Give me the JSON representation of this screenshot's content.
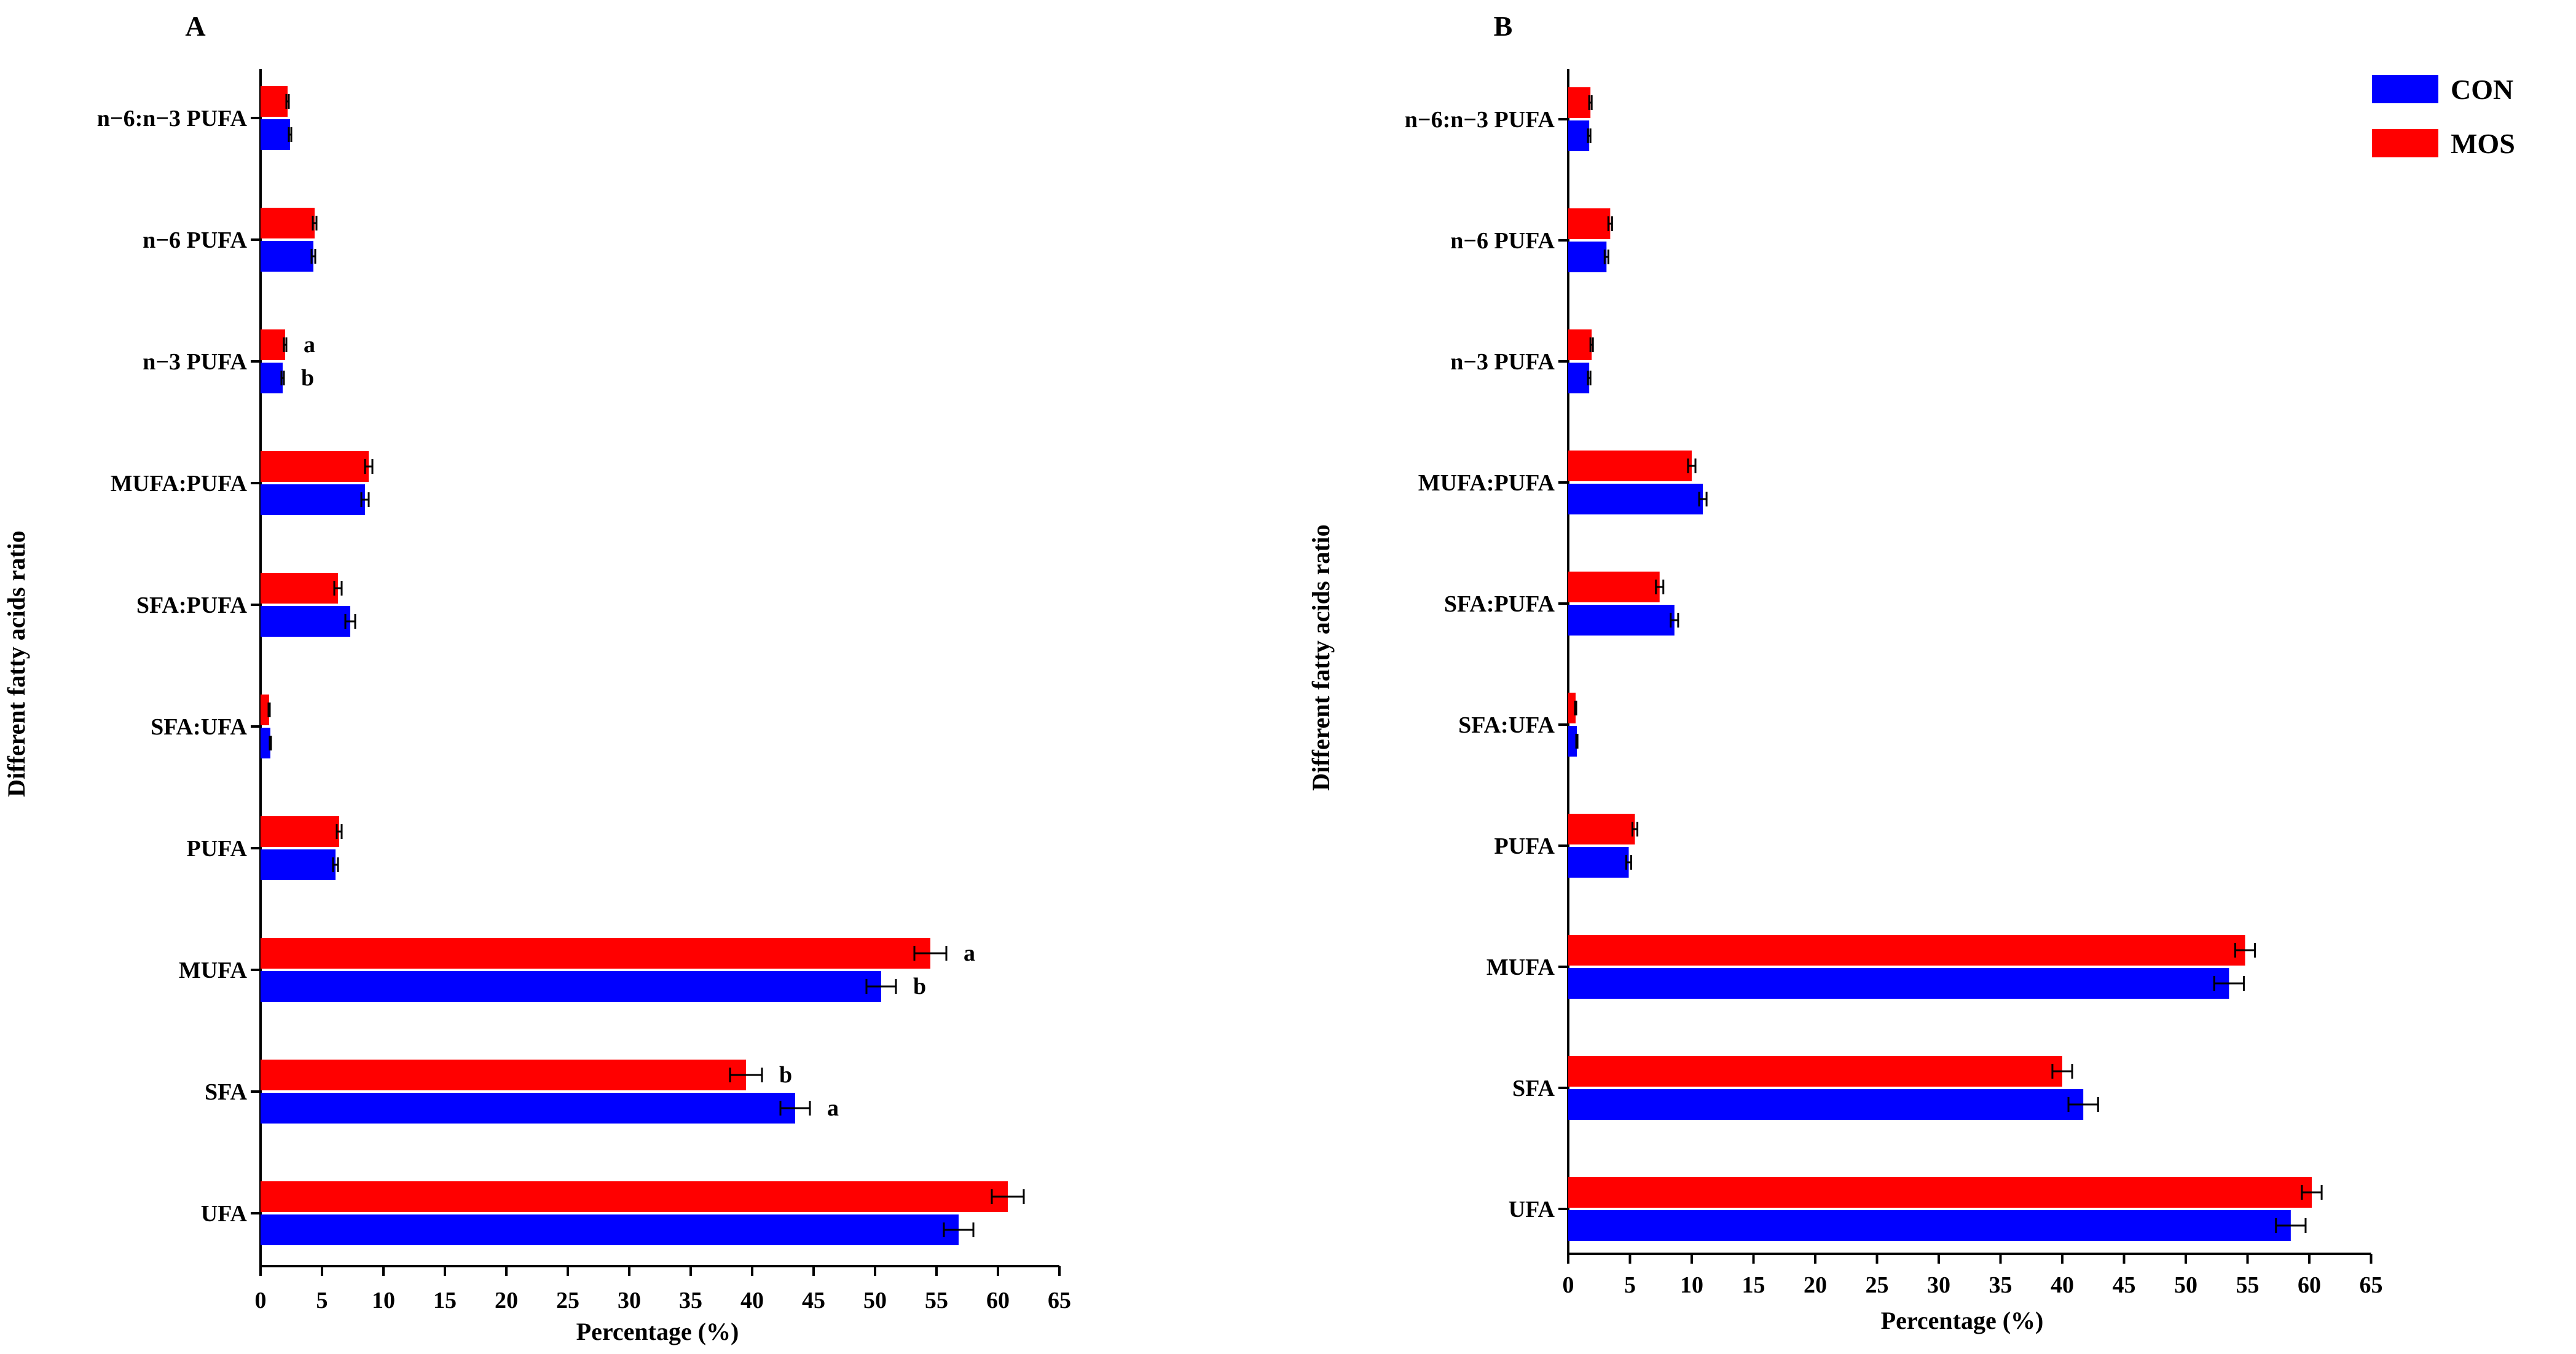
{
  "colors": {
    "CON": "#0000ff",
    "MOS": "#ff0000",
    "axis": "#000000"
  },
  "legend": [
    {
      "key": "CON",
      "label": "CON",
      "color": "#0000ff"
    },
    {
      "key": "MOS",
      "label": "MOS",
      "color": "#ff0000"
    }
  ],
  "chart_data": [
    {
      "type": "bar",
      "orientation": "horizontal",
      "panel_label": "A",
      "xlabel": "Percentage (%)",
      "ylabel": "Different fatty acids ratio",
      "xlim": [
        0,
        65
      ],
      "xticks": [
        0,
        5,
        10,
        15,
        20,
        25,
        30,
        35,
        40,
        45,
        50,
        55,
        60,
        65
      ],
      "categories": [
        "n−6:n−3 PUFA",
        "n−6 PUFA",
        "n−3 PUFA",
        "MUFA:PUFA",
        "SFA:PUFA",
        "SFA:UFA",
        "PUFA",
        "MUFA",
        "SFA",
        "UFA"
      ],
      "series": [
        {
          "name": "MOS",
          "color": "#ff0000",
          "values": [
            2.2,
            4.4,
            2.0,
            8.8,
            6.3,
            0.7,
            6.4,
            54.5,
            39.5,
            60.8
          ],
          "errors": [
            0.1,
            0.15,
            0.1,
            0.3,
            0.3,
            0.05,
            0.2,
            1.3,
            1.3,
            1.3
          ],
          "annotations": [
            "",
            "",
            "a",
            "",
            "",
            "",
            "",
            "a",
            "b",
            ""
          ]
        },
        {
          "name": "CON",
          "color": "#0000ff",
          "values": [
            2.4,
            4.3,
            1.8,
            8.5,
            7.3,
            0.8,
            6.1,
            50.5,
            43.5,
            56.8
          ],
          "errors": [
            0.1,
            0.15,
            0.1,
            0.3,
            0.4,
            0.05,
            0.2,
            1.2,
            1.2,
            1.2
          ],
          "annotations": [
            "",
            "",
            "b",
            "",
            "",
            "",
            "",
            "b",
            "a",
            ""
          ]
        }
      ]
    },
    {
      "type": "bar",
      "orientation": "horizontal",
      "panel_label": "B",
      "xlabel": "Percentage (%)",
      "ylabel": "Different fatty acids ratio",
      "xlim": [
        0,
        65
      ],
      "xticks": [
        0,
        5,
        10,
        15,
        20,
        25,
        30,
        35,
        40,
        45,
        50,
        55,
        60,
        65
      ],
      "categories": [
        "n−6:n−3 PUFA",
        "n−6 PUFA",
        "n−3 PUFA",
        "MUFA:PUFA",
        "SFA:PUFA",
        "SFA:UFA",
        "PUFA",
        "MUFA",
        "SFA",
        "UFA"
      ],
      "series": [
        {
          "name": "MOS",
          "color": "#ff0000",
          "values": [
            1.8,
            3.4,
            1.9,
            10.0,
            7.4,
            0.6,
            5.4,
            54.8,
            40.0,
            60.2
          ],
          "errors": [
            0.1,
            0.15,
            0.1,
            0.3,
            0.3,
            0.05,
            0.2,
            0.8,
            0.8,
            0.8
          ],
          "annotations": [
            "",
            "",
            "",
            "",
            "",
            "",
            "",
            "",
            "",
            ""
          ]
        },
        {
          "name": "CON",
          "color": "#0000ff",
          "values": [
            1.7,
            3.1,
            1.7,
            10.9,
            8.6,
            0.7,
            4.9,
            53.5,
            41.7,
            58.5
          ],
          "errors": [
            0.1,
            0.15,
            0.1,
            0.3,
            0.3,
            0.05,
            0.2,
            1.2,
            1.2,
            1.2
          ],
          "annotations": [
            "",
            "",
            "",
            "",
            "",
            "",
            "",
            "",
            "",
            ""
          ]
        }
      ]
    }
  ]
}
